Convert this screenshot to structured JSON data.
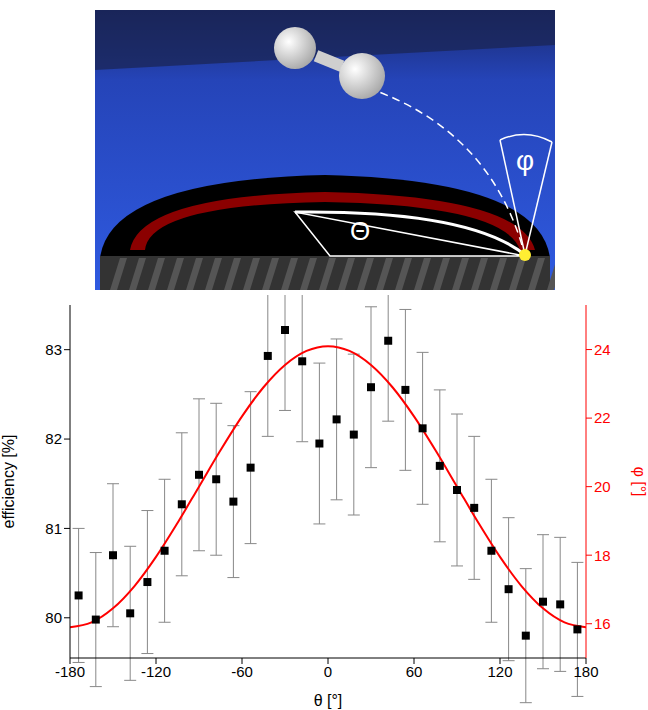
{
  "illustration": {
    "theta_label": "Θ",
    "phi_label": "φ"
  },
  "chart_data": {
    "type": "scatter",
    "x_label": "θ [°]",
    "y_label": "efficiency [%]",
    "y2_label": "φ [°]",
    "xlim": [
      -180,
      180
    ],
    "xticks": [
      -180,
      -120,
      -60,
      0,
      60,
      120,
      180
    ],
    "ylim": [
      79.55,
      83.5
    ],
    "yticks": [
      80,
      81,
      82,
      83
    ],
    "y2lim": [
      15,
      25.3
    ],
    "y2ticks": [
      16,
      18,
      20,
      22,
      24
    ],
    "series": [
      {
        "type": "scatter",
        "color": "#000000",
        "marker": "square",
        "x": [
          -174,
          -162,
          -150,
          -138,
          -126,
          -114,
          -102,
          -90,
          -78,
          -66,
          -54,
          -42,
          -30,
          -18,
          -6,
          6,
          18,
          30,
          42,
          54,
          66,
          78,
          90,
          102,
          114,
          126,
          138,
          150,
          162,
          174
        ],
        "values": [
          80.25,
          79.98,
          80.7,
          80.05,
          80.4,
          80.75,
          81.27,
          81.6,
          81.55,
          81.3,
          81.68,
          82.93,
          83.22,
          82.87,
          81.95,
          82.22,
          82.05,
          82.58,
          83.1,
          82.55,
          82.12,
          81.7,
          81.43,
          81.23,
          80.75,
          80.32,
          79.8,
          80.18,
          80.15,
          79.87
        ],
        "errors": [
          0.75,
          0.75,
          0.8,
          0.75,
          0.8,
          0.8,
          0.8,
          0.85,
          0.85,
          0.85,
          0.85,
          0.9,
          0.9,
          0.9,
          0.9,
          0.9,
          0.9,
          0.9,
          0.9,
          0.9,
          0.85,
          0.85,
          0.85,
          0.8,
          0.8,
          0.8,
          0.75,
          0.75,
          0.75,
          0.75
        ]
      },
      {
        "type": "line",
        "color": "#ff0000",
        "axis": "y2",
        "x": [
          -180,
          -165,
          -150,
          -135,
          -120,
          -105,
          -90,
          -75,
          -60,
          -45,
          -30,
          -15,
          0,
          15,
          30,
          45,
          60,
          75,
          90,
          105,
          120,
          135,
          150,
          165,
          180
        ],
        "values": [
          15.9,
          16.04,
          16.45,
          17.1,
          17.95,
          18.94,
          20.0,
          21.06,
          22.05,
          22.9,
          23.55,
          23.96,
          24.1,
          23.96,
          23.55,
          22.9,
          22.05,
          21.06,
          20.0,
          18.94,
          17.95,
          17.1,
          16.45,
          16.04,
          15.9
        ]
      }
    ]
  }
}
